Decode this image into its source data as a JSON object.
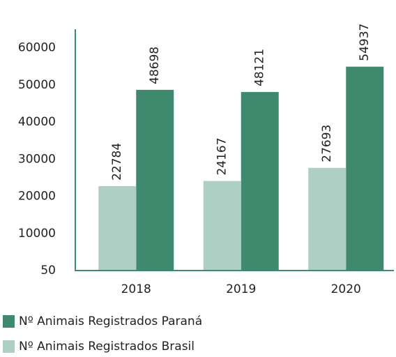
{
  "chart_data": {
    "type": "bar",
    "categories": [
      "2018",
      "2019",
      "2020"
    ],
    "series": [
      {
        "name": "Nº Animais Registrados Paraná",
        "color": "#3f8a6e",
        "values": [
          48698,
          48121,
          54937
        ]
      },
      {
        "name": "Nº Animais Registrados Brasil",
        "color": "#aecfc3",
        "values": [
          22784,
          24167,
          27693
        ]
      }
    ],
    "ylim": [
      50,
      65000
    ],
    "yticks": [
      50,
      10000,
      20000,
      30000,
      40000,
      50000,
      60000
    ],
    "grid": false
  }
}
